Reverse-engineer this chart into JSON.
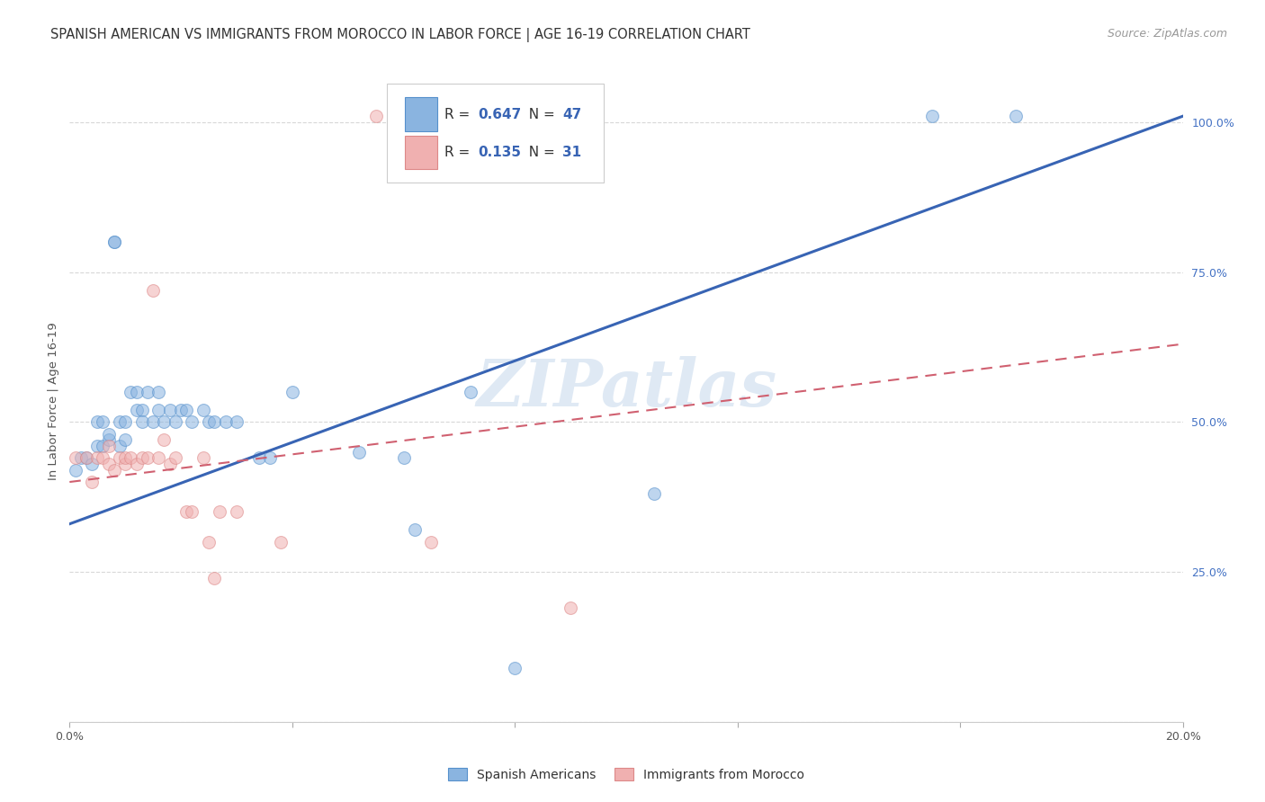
{
  "title": "SPANISH AMERICAN VS IMMIGRANTS FROM MOROCCO IN LABOR FORCE | AGE 16-19 CORRELATION CHART",
  "source": "Source: ZipAtlas.com",
  "ylabel": "In Labor Force | Age 16-19",
  "x_min": 0.0,
  "x_max": 0.2,
  "y_min": 0.0,
  "y_max": 1.07,
  "blue_R": 0.647,
  "blue_N": 47,
  "pink_R": 0.135,
  "pink_N": 31,
  "blue_scatter_x": [
    0.001,
    0.002,
    0.003,
    0.004,
    0.005,
    0.005,
    0.006,
    0.006,
    0.007,
    0.007,
    0.008,
    0.008,
    0.009,
    0.009,
    0.01,
    0.01,
    0.011,
    0.012,
    0.012,
    0.013,
    0.013,
    0.014,
    0.015,
    0.016,
    0.016,
    0.017,
    0.018,
    0.019,
    0.02,
    0.021,
    0.022,
    0.024,
    0.025,
    0.026,
    0.028,
    0.03,
    0.034,
    0.036,
    0.04,
    0.052,
    0.06,
    0.062,
    0.072,
    0.08,
    0.105,
    0.155,
    0.17
  ],
  "blue_scatter_y": [
    0.42,
    0.44,
    0.44,
    0.43,
    0.46,
    0.5,
    0.46,
    0.5,
    0.47,
    0.48,
    0.8,
    0.8,
    0.46,
    0.5,
    0.5,
    0.47,
    0.55,
    0.52,
    0.55,
    0.52,
    0.5,
    0.55,
    0.5,
    0.55,
    0.52,
    0.5,
    0.52,
    0.5,
    0.52,
    0.52,
    0.5,
    0.52,
    0.5,
    0.5,
    0.5,
    0.5,
    0.44,
    0.44,
    0.55,
    0.45,
    0.44,
    0.32,
    0.55,
    0.09,
    0.38,
    1.01,
    1.01
  ],
  "pink_scatter_x": [
    0.001,
    0.003,
    0.004,
    0.005,
    0.006,
    0.007,
    0.007,
    0.008,
    0.009,
    0.01,
    0.01,
    0.011,
    0.012,
    0.013,
    0.014,
    0.015,
    0.016,
    0.017,
    0.018,
    0.019,
    0.021,
    0.022,
    0.024,
    0.025,
    0.026,
    0.027,
    0.03,
    0.038,
    0.055,
    0.065,
    0.09
  ],
  "pink_scatter_y": [
    0.44,
    0.44,
    0.4,
    0.44,
    0.44,
    0.46,
    0.43,
    0.42,
    0.44,
    0.43,
    0.44,
    0.44,
    0.43,
    0.44,
    0.44,
    0.72,
    0.44,
    0.47,
    0.43,
    0.44,
    0.35,
    0.35,
    0.44,
    0.3,
    0.24,
    0.35,
    0.35,
    0.3,
    1.01,
    0.3,
    0.19
  ],
  "blue_line_x": [
    0.0,
    0.2
  ],
  "blue_line_y": [
    0.33,
    1.01
  ],
  "pink_line_x": [
    0.0,
    0.2
  ],
  "pink_line_y": [
    0.4,
    0.63
  ],
  "watermark_text": "ZIPatlas",
  "legend_label_blue": "Spanish Americans",
  "legend_label_pink": "Immigrants from Morocco",
  "blue_scatter_color": "#8ab4e0",
  "pink_scatter_color": "#f0b0b0",
  "blue_line_color": "#3864b4",
  "pink_line_color": "#d06070",
  "grid_color": "#d8d8d8",
  "background_color": "#ffffff",
  "title_fontsize": 10.5,
  "source_fontsize": 9,
  "ylabel_fontsize": 9.5,
  "tick_fontsize": 9,
  "scatter_size": 100,
  "scatter_alpha": 0.55,
  "scatter_edgecolor_blue": "#5590cc",
  "scatter_edgecolor_pink": "#dd8888"
}
